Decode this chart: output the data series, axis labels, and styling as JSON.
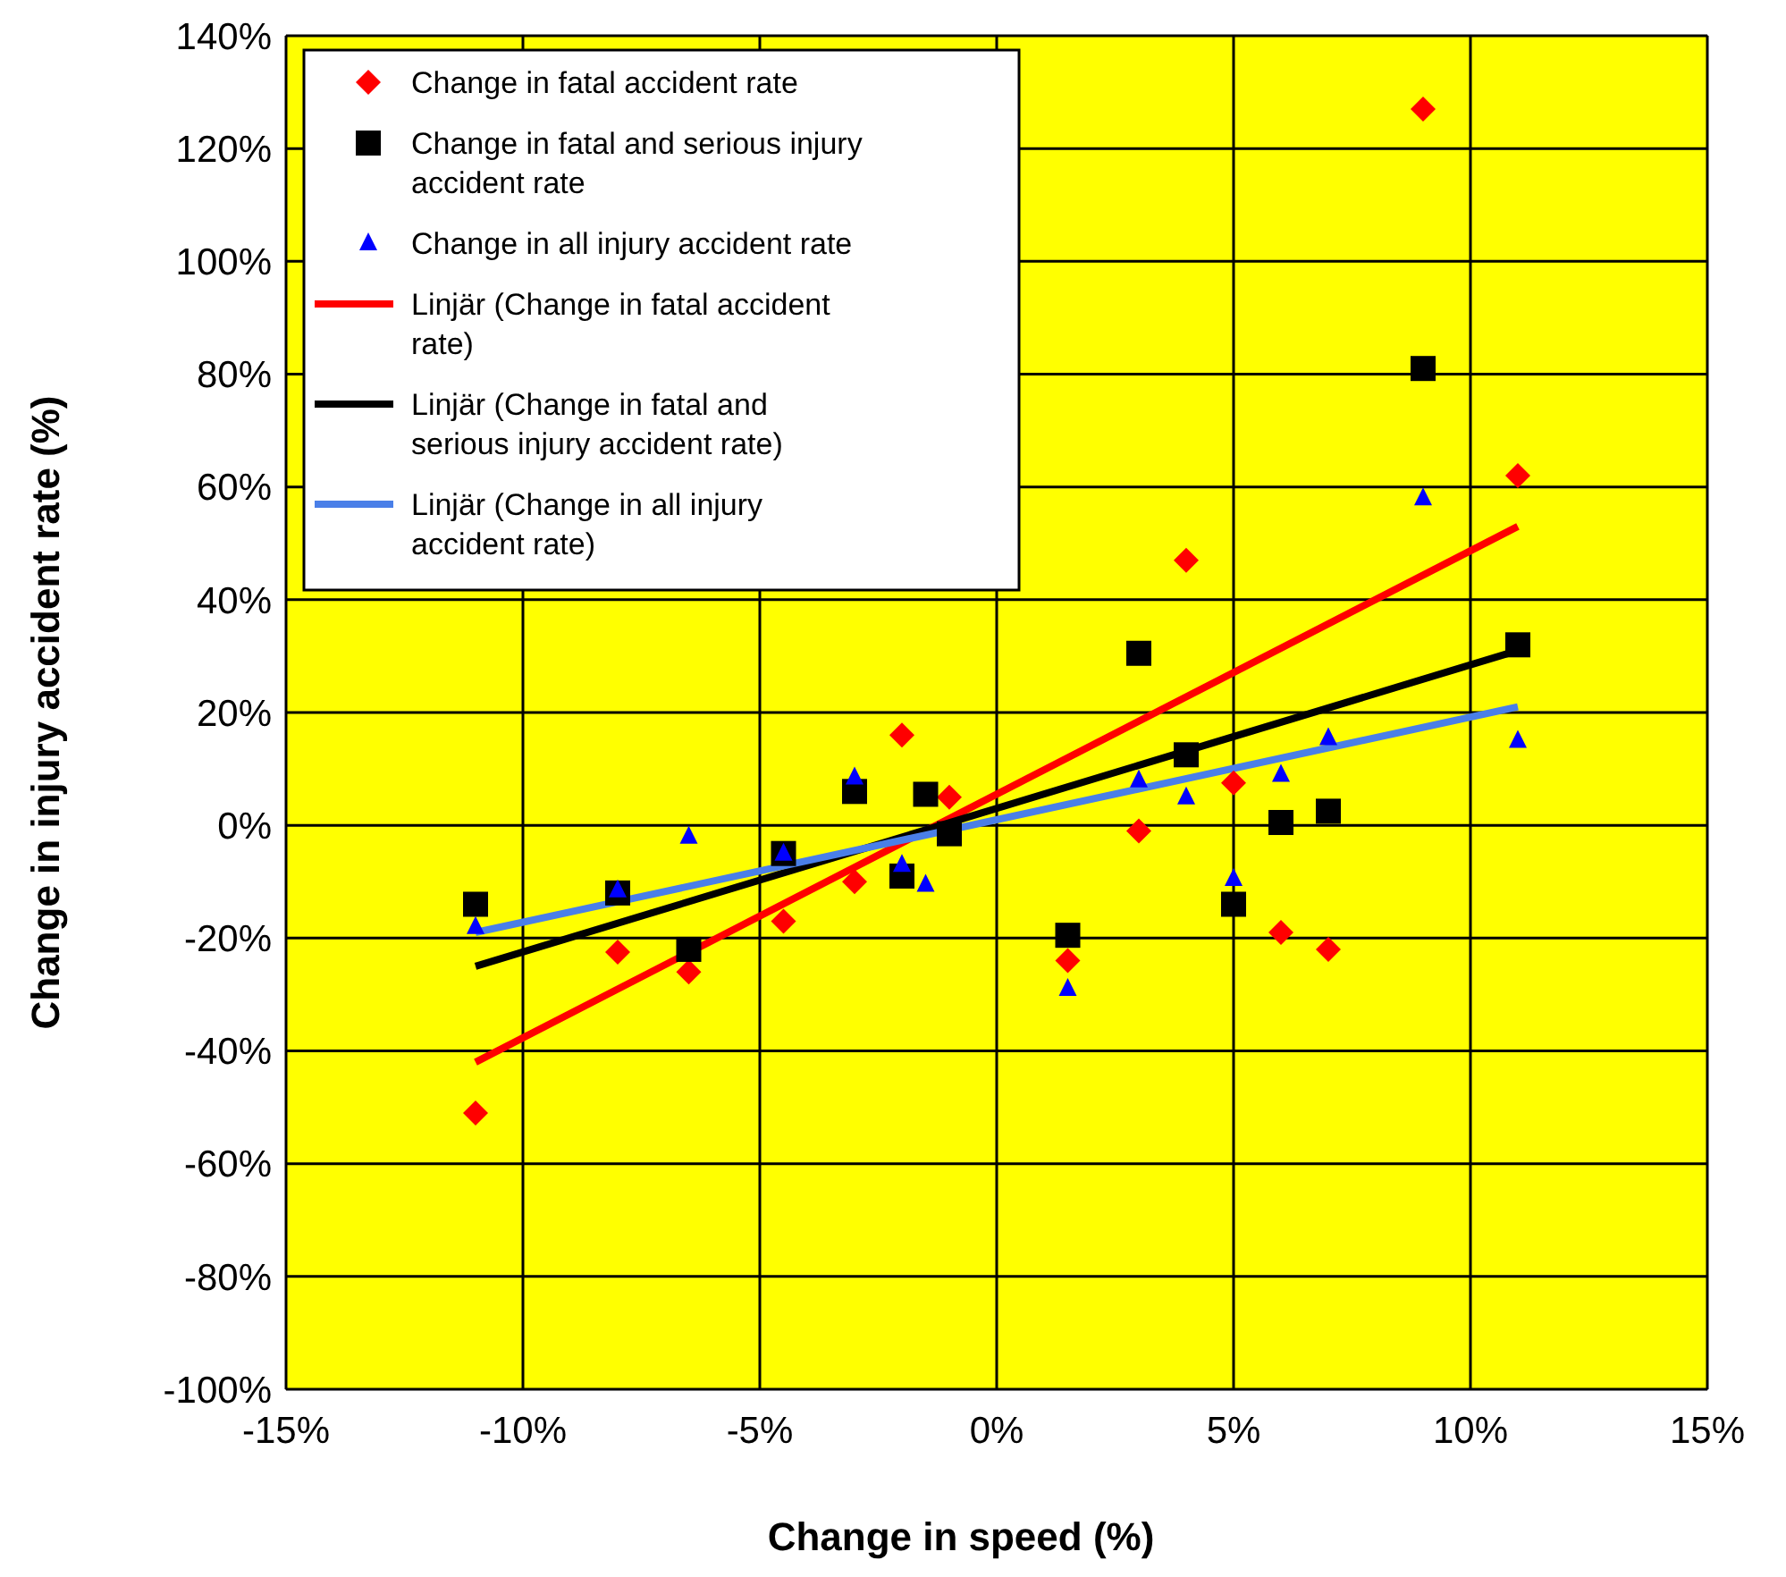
{
  "chart_data": {
    "type": "scatter",
    "xlabel": "Change in speed (%)",
    "ylabel": "Change in injury accident rate (%)",
    "xlim": [
      -15,
      15
    ],
    "ylim": [
      -100,
      140
    ],
    "xticks": [
      {
        "value": -15,
        "label": "-15%"
      },
      {
        "value": -10,
        "label": "-10%"
      },
      {
        "value": -5,
        "label": "-5%"
      },
      {
        "value": 0,
        "label": "0%"
      },
      {
        "value": 5,
        "label": "5%"
      },
      {
        "value": 10,
        "label": "10%"
      },
      {
        "value": 15,
        "label": "15%"
      }
    ],
    "yticks": [
      {
        "value": -100,
        "label": "-100%"
      },
      {
        "value": -80,
        "label": "-80%"
      },
      {
        "value": -60,
        "label": "-60%"
      },
      {
        "value": -40,
        "label": "-40%"
      },
      {
        "value": -20,
        "label": "-20%"
      },
      {
        "value": 0,
        "label": "0%"
      },
      {
        "value": 20,
        "label": "20%"
      },
      {
        "value": 40,
        "label": "40%"
      },
      {
        "value": 60,
        "label": "60%"
      },
      {
        "value": 80,
        "label": "80%"
      },
      {
        "value": 100,
        "label": "100%"
      },
      {
        "value": 120,
        "label": "120%"
      },
      {
        "value": 140,
        "label": "140%"
      }
    ],
    "grid": true,
    "legend": "top left",
    "series": [
      {
        "name": "Change in fatal accident rate",
        "marker": "diamond",
        "color": "#ff0000",
        "x": [
          -11,
          -8,
          -6.5,
          -4.5,
          -3,
          -2,
          -1,
          1.5,
          3,
          4,
          5,
          6,
          7,
          9,
          11
        ],
        "values": [
          -51,
          -22.5,
          -26,
          -17,
          -10,
          16,
          5,
          -24,
          -1,
          47,
          7.5,
          -19,
          -22,
          127,
          62
        ]
      },
      {
        "name": "Change in fatal and serious injury accident rate",
        "marker": "square",
        "color": "#000000",
        "x": [
          -11,
          -8,
          -6.5,
          -4.5,
          -3,
          -2,
          -1.5,
          -1,
          1.5,
          3,
          4,
          5,
          6,
          7,
          9,
          11
        ],
        "values": [
          -14,
          -12,
          -22,
          -5,
          6,
          -9,
          5.5,
          -1.5,
          -19.5,
          30.5,
          12.5,
          -14,
          0.5,
          2.5,
          81,
          32
        ]
      },
      {
        "name": "Change in all injury accident rate",
        "marker": "triangle",
        "color": "#0000ff",
        "x": [
          -11,
          -8,
          -6.5,
          -4.5,
          -3,
          -2,
          -1.5,
          1.5,
          3,
          4,
          5,
          6,
          7,
          9,
          11
        ],
        "values": [
          -18,
          -11.5,
          -2,
          -5,
          8.5,
          -7,
          -10.5,
          -29,
          8,
          5,
          -9.5,
          9,
          15.5,
          58,
          15
        ]
      },
      {
        "name": "Linjär (Change in fatal accident rate)",
        "type": "line",
        "marker": "none",
        "line_style": "solid",
        "color": "#ff0000",
        "x": [
          -11,
          11
        ],
        "values": [
          -42,
          53
        ]
      },
      {
        "name": "Linjär (Change in fatal and serious injury accident rate)",
        "type": "line",
        "marker": "none",
        "line_style": "solid",
        "color": "#000000",
        "x": [
          -11,
          11
        ],
        "values": [
          -25,
          31
        ]
      },
      {
        "name": "Linjär (Change in all injury accident rate)",
        "type": "line",
        "marker": "none",
        "line_style": "solid",
        "color": "#4a7fe8",
        "x": [
          -11,
          11
        ],
        "values": [
          -19,
          21
        ]
      }
    ]
  }
}
